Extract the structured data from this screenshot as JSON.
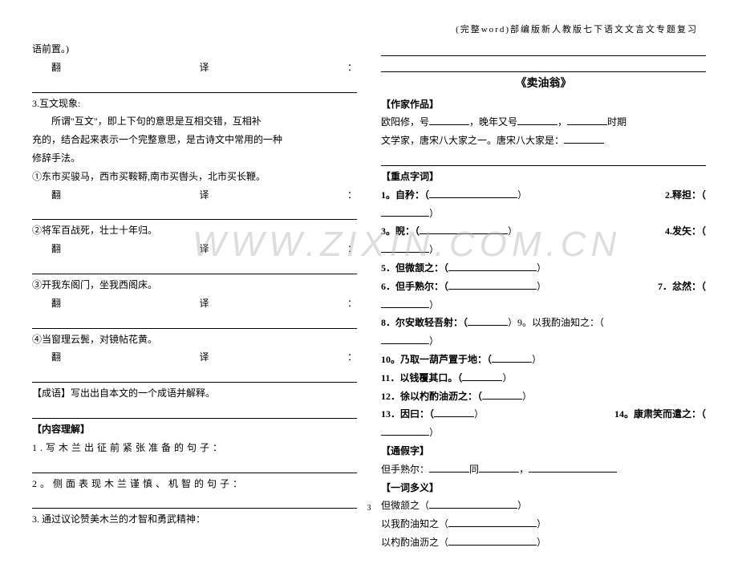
{
  "header": "(完整word)部编版新人教版七下语文文言文专题复习",
  "page_number": "3",
  "watermark": "WWW.ZIXIN.COM.CN",
  "left": {
    "line1": "语前置。)",
    "fan": "翻",
    "yi": "译",
    "colon": "：",
    "huwen_title": "3.互文现象:",
    "huwen_body1": "所谓\"互文\"，即上下句的意思是互相交错，互相补",
    "huwen_body2": "充的，结合起来表示一个完整意思，是古诗文中常用的一种",
    "huwen_body3": "修辞手法。",
    "item1": "①东市买骏马，西市买鞍鞯,南市买辔头，北市买长鞭。",
    "item2": "②将军百战死，壮士十年归。",
    "item3": "③开我东阁门，坐我西阁床。",
    "item4": "④当窗理云鬓，对镜帖花黄。",
    "chengyu": "【成语】写出出自本文的一个成语并解释。",
    "neirong": "【内容理解】",
    "q1": "1.写木兰出征前紧张准备的句子",
    "q2": "2。侧面表现木兰谨慎、机智的句子：",
    "q3": "3. 通过议论赞美木兰的才智和勇武精神："
  },
  "right": {
    "title": "《卖油翁》",
    "zuojia": "【作家作品】",
    "author_line1a": "欧阳修，号",
    "author_line1b": "，晚年又号",
    "author_line1c": "，",
    "author_line1d": "时期",
    "author_line2a": "文学家，唐宋八大家之一。唐宋八大家是：",
    "zhongdian": "【重点字词】",
    "v1a": "1。自矜：（",
    "v1b": "）",
    "v2a": "2.释担：（",
    "v2b": "）",
    "v3a": "3。睨：（",
    "v3b": "）",
    "v4a": "4.发矢：（",
    "v4b": "）",
    "v5a": "5．但微颔之：（",
    "v5b": "）",
    "v6a": "6．但手熟尔：（",
    "v6b": "）",
    "v7a": "7．忿然：（",
    "v7b": "）",
    "v8a": "8．尔安敢轻吾射：（",
    "v8b": "）9。以我酌油知之：（",
    "v8c": "）",
    "v10a": "10。乃取一葫芦置于地：（",
    "v10b": "）",
    "v11a": "11．以钱覆其口。（",
    "v11b": "）",
    "v12a": "12．徐以杓酌油沥之：（",
    "v12b": "）",
    "v13a": "13．因曰：（",
    "v13b": "）",
    "v14a": "14。康肃笑而遣之：（",
    "v14b": "）",
    "tongjia": "【通假字】",
    "tongjia_line": "但手熟尔：",
    "tong": "同",
    "yici": "【一词多义】",
    "yc1": "但微颔之（",
    "yc2": "以我酌油知之（",
    "yc3": "以杓酌油沥之（",
    "close": "）",
    "zhi": "之"
  }
}
